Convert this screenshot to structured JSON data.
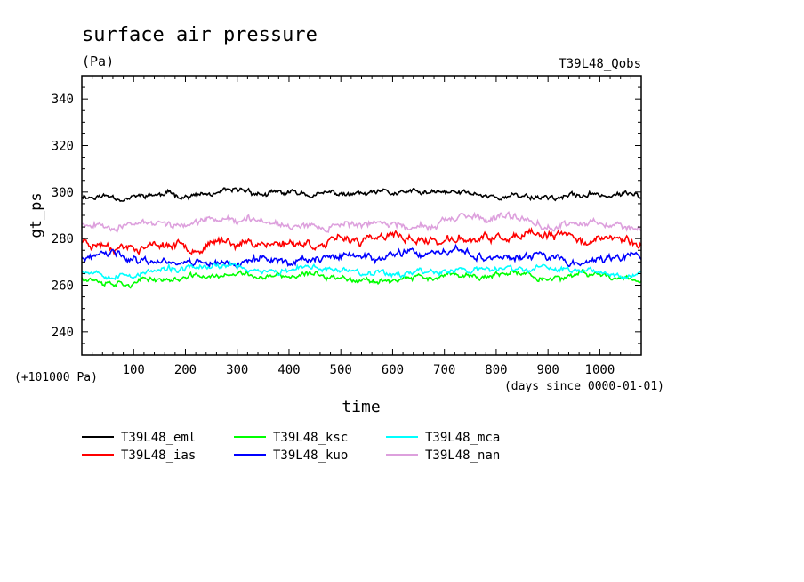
{
  "chart_data": {
    "type": "line",
    "title": "surface air pressure",
    "units": "(Pa)",
    "run_label": "T39L48_Qobs",
    "xlabel": "time",
    "ylabel": "gt_ps",
    "y_offset_note": "(+101000 Pa)",
    "x_units_note": "(days since 0000-01-01)",
    "xlim": [
      0,
      1080
    ],
    "ylim": [
      230,
      350
    ],
    "x_ticks": [
      100,
      200,
      300,
      400,
      500,
      600,
      700,
      800,
      900,
      1000
    ],
    "y_ticks": [
      240,
      260,
      280,
      300,
      320,
      340
    ],
    "legend_position": "bottom",
    "series": [
      {
        "name": "T39L48_eml",
        "color": "#000000",
        "mean": 298.5,
        "amp": 2.0,
        "seed": 11
      },
      {
        "name": "T39L48_ias",
        "color": "#ff0000",
        "mean": 279.0,
        "amp": 3.0,
        "seed": 23
      },
      {
        "name": "T39L48_ksc",
        "color": "#00ff00",
        "mean": 263.5,
        "amp": 2.0,
        "seed": 37
      },
      {
        "name": "T39L48_kuo",
        "color": "#0000ff",
        "mean": 271.5,
        "amp": 2.8,
        "seed": 41
      },
      {
        "name": "T39L48_mca",
        "color": "#00ffff",
        "mean": 266.5,
        "amp": 2.2,
        "seed": 53
      },
      {
        "name": "T39L48_nan",
        "color": "#dda0dd",
        "mean": 287.0,
        "amp": 2.5,
        "seed": 67
      }
    ]
  }
}
